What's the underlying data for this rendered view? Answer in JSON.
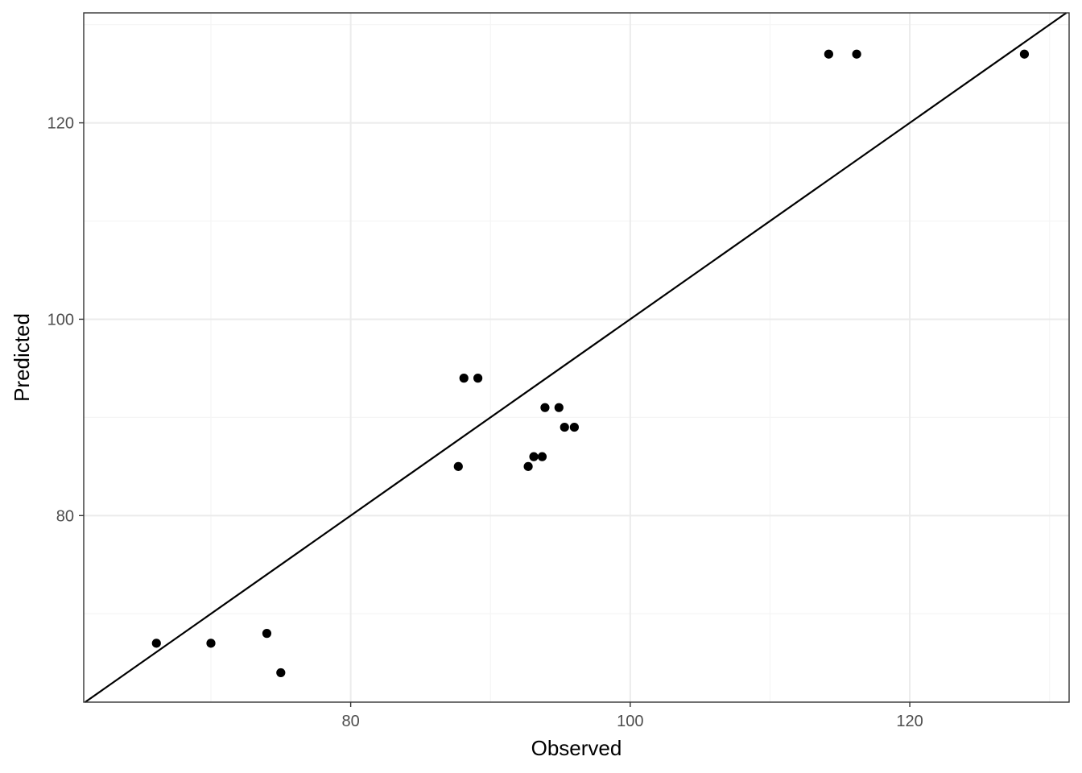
{
  "chart_data": {
    "type": "scatter",
    "title": "",
    "xlabel": "Observed",
    "ylabel": "Predicted",
    "xlim": [
      60.9,
      131.4
    ],
    "ylim": [
      61.0,
      131.2
    ],
    "x_major_ticks": [
      80,
      100,
      120
    ],
    "x_minor_ticks": [
      70,
      90,
      110,
      130
    ],
    "y_major_ticks": [
      80,
      100,
      120
    ],
    "y_minor_ticks": [
      70,
      90,
      110,
      130
    ],
    "x_tick_labels": [
      "80",
      "100",
      "120"
    ],
    "y_tick_labels": [
      "80",
      "100",
      "120"
    ],
    "grid": true,
    "reference_line": {
      "type": "identity",
      "slope": 1,
      "intercept": 0
    },
    "points": [
      {
        "x": 66.1,
        "y": 67.0
      },
      {
        "x": 70.0,
        "y": 67.0
      },
      {
        "x": 74.0,
        "y": 68.0
      },
      {
        "x": 75.0,
        "y": 64.0
      },
      {
        "x": 87.7,
        "y": 85.0
      },
      {
        "x": 88.1,
        "y": 94.0
      },
      {
        "x": 89.1,
        "y": 94.0
      },
      {
        "x": 92.7,
        "y": 85.0
      },
      {
        "x": 93.1,
        "y": 86.0
      },
      {
        "x": 93.7,
        "y": 86.0
      },
      {
        "x": 93.9,
        "y": 91.0
      },
      {
        "x": 94.9,
        "y": 91.0
      },
      {
        "x": 95.3,
        "y": 89.0
      },
      {
        "x": 96.0,
        "y": 89.0
      },
      {
        "x": 114.2,
        "y": 127.0
      },
      {
        "x": 116.2,
        "y": 127.0
      },
      {
        "x": 128.2,
        "y": 127.0
      }
    ],
    "colors": {
      "points": "#000000",
      "line": "#000000",
      "panel_border": "#333333",
      "grid_major": "#ebebeb",
      "grid_minor": "#f5f5f5",
      "tick_label": "#4d4d4d"
    }
  }
}
